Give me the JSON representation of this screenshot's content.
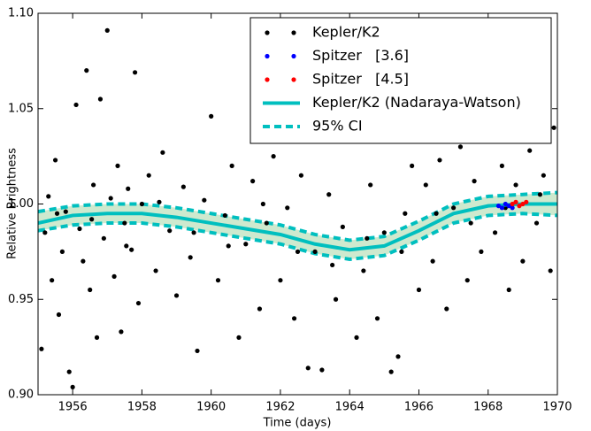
{
  "chart_data": {
    "type": "scatter",
    "xlabel": "Time (days)",
    "ylabel": "Relative Brightness",
    "xlim": [
      1955,
      1970
    ],
    "ylim": [
      0.9,
      1.1
    ],
    "xticks": [
      1956,
      1958,
      1960,
      1962,
      1964,
      1966,
      1968,
      1970
    ],
    "yticks": [
      {
        "value": 0.9,
        "label": "0.90"
      },
      0.95,
      {
        "value": 1.0,
        "label": "1.00"
      },
      1.05,
      {
        "value": 1.1,
        "label": "1.10"
      }
    ],
    "legend": "upper right",
    "series": [
      {
        "name": "Kepler/K2",
        "color": "#000000",
        "kind": "points",
        "x": [
          1955.1,
          1955.2,
          1955.3,
          1955.4,
          1955.5,
          1955.6,
          1955.7,
          1955.8,
          1955.9,
          1956.0,
          1956.1,
          1956.2,
          1956.3,
          1956.4,
          1956.5,
          1956.6,
          1956.7,
          1956.8,
          1956.9,
          1957.0,
          1957.1,
          1957.2,
          1957.3,
          1957.4,
          1957.5,
          1957.6,
          1957.7,
          1957.8,
          1957.9,
          1958.0,
          1958.2,
          1958.4,
          1958.6,
          1958.8,
          1959.0,
          1959.2,
          1959.4,
          1959.6,
          1959.8,
          1960.0,
          1960.2,
          1960.4,
          1960.6,
          1960.8,
          1961.0,
          1961.2,
          1961.4,
          1961.6,
          1961.8,
          1962.0,
          1962.2,
          1962.4,
          1962.6,
          1962.8,
          1963.0,
          1963.2,
          1963.4,
          1963.6,
          1963.8,
          1964.0,
          1964.2,
          1964.4,
          1964.6,
          1964.8,
          1965.0,
          1965.2,
          1965.4,
          1965.6,
          1965.8,
          1966.0,
          1966.2,
          1966.4,
          1966.6,
          1966.8,
          1967.0,
          1967.2,
          1967.4,
          1967.6,
          1967.8,
          1968.0,
          1968.2,
          1968.4,
          1968.6,
          1968.8,
          1969.0,
          1969.2,
          1969.4,
          1969.6,
          1969.8,
          1969.9,
          1955.55,
          1956.55,
          1957.55,
          1958.5,
          1959.5,
          1960.5,
          1961.5,
          1962.5,
          1963.5,
          1964.5,
          1965.5,
          1966.5,
          1967.5,
          1968.5,
          1969.5
        ],
        "values": [
          0.924,
          0.985,
          1.004,
          0.96,
          1.023,
          0.942,
          0.975,
          0.996,
          0.912,
          0.904,
          1.052,
          0.987,
          0.97,
          1.07,
          0.955,
          1.01,
          0.93,
          1.055,
          0.982,
          1.091,
          1.003,
          0.962,
          1.02,
          0.933,
          0.99,
          1.008,
          0.976,
          1.069,
          0.948,
          1.0,
          1.015,
          0.965,
          1.027,
          0.986,
          0.952,
          1.009,
          0.972,
          0.923,
          1.002,
          1.046,
          0.96,
          0.994,
          1.02,
          0.93,
          0.979,
          1.012,
          0.945,
          0.99,
          1.025,
          0.96,
          0.998,
          0.94,
          1.015,
          0.914,
          0.975,
          0.913,
          1.005,
          0.95,
          0.988,
          1.036,
          0.93,
          0.965,
          1.01,
          0.94,
          0.985,
          0.912,
          0.92,
          0.995,
          1.02,
          0.955,
          1.01,
          0.97,
          1.023,
          0.945,
          0.998,
          1.03,
          0.96,
          1.012,
          0.975,
          1.045,
          0.985,
          1.02,
          0.955,
          1.01,
          0.97,
          1.028,
          0.99,
          1.015,
          0.965,
          1.04,
          0.995,
          0.992,
          0.978,
          1.001,
          0.985,
          0.978,
          1.0,
          0.975,
          0.968,
          0.982,
          0.975,
          0.995,
          0.99,
          0.998,
          1.005
        ]
      },
      {
        "name": "Spitzer   [3.6]",
        "color": "#0000ff",
        "kind": "points",
        "x": [
          1968.3,
          1968.4,
          1968.5,
          1968.6,
          1968.7
        ],
        "values": [
          0.999,
          0.998,
          1.0,
          0.999,
          0.998
        ]
      },
      {
        "name": "Spitzer   [4.5]",
        "color": "#ff0000",
        "kind": "points",
        "x": [
          1968.7,
          1968.8,
          1968.9,
          1969.0,
          1969.1
        ],
        "values": [
          1.0,
          1.001,
          0.999,
          1.0,
          1.001
        ]
      },
      {
        "name": "Kepler/K2 (Nadaraya-Watson)",
        "color": "#00bfbf",
        "kind": "line",
        "x": [
          1955,
          1956,
          1957,
          1958,
          1959,
          1960,
          1961,
          1962,
          1963,
          1964,
          1965,
          1966,
          1967,
          1968,
          1969,
          1970
        ],
        "values": [
          0.99,
          0.994,
          0.995,
          0.995,
          0.993,
          0.99,
          0.987,
          0.984,
          0.979,
          0.976,
          0.978,
          0.986,
          0.995,
          0.999,
          1.0,
          1.0
        ]
      },
      {
        "name": "95% CI",
        "color": "#00bfbf",
        "band_color": "#b9e0b9",
        "kind": "band",
        "x": [
          1955,
          1956,
          1957,
          1958,
          1959,
          1960,
          1961,
          1962,
          1963,
          1964,
          1965,
          1966,
          1967,
          1968,
          1969,
          1970
        ],
        "upper": [
          0.996,
          0.999,
          1.0,
          1.0,
          0.998,
          0.995,
          0.992,
          0.989,
          0.984,
          0.981,
          0.983,
          0.991,
          1.0,
          1.004,
          1.005,
          1.006
        ],
        "lower": [
          0.986,
          0.989,
          0.99,
          0.99,
          0.988,
          0.985,
          0.982,
          0.979,
          0.974,
          0.971,
          0.973,
          0.981,
          0.99,
          0.994,
          0.995,
          0.994
        ]
      }
    ]
  }
}
